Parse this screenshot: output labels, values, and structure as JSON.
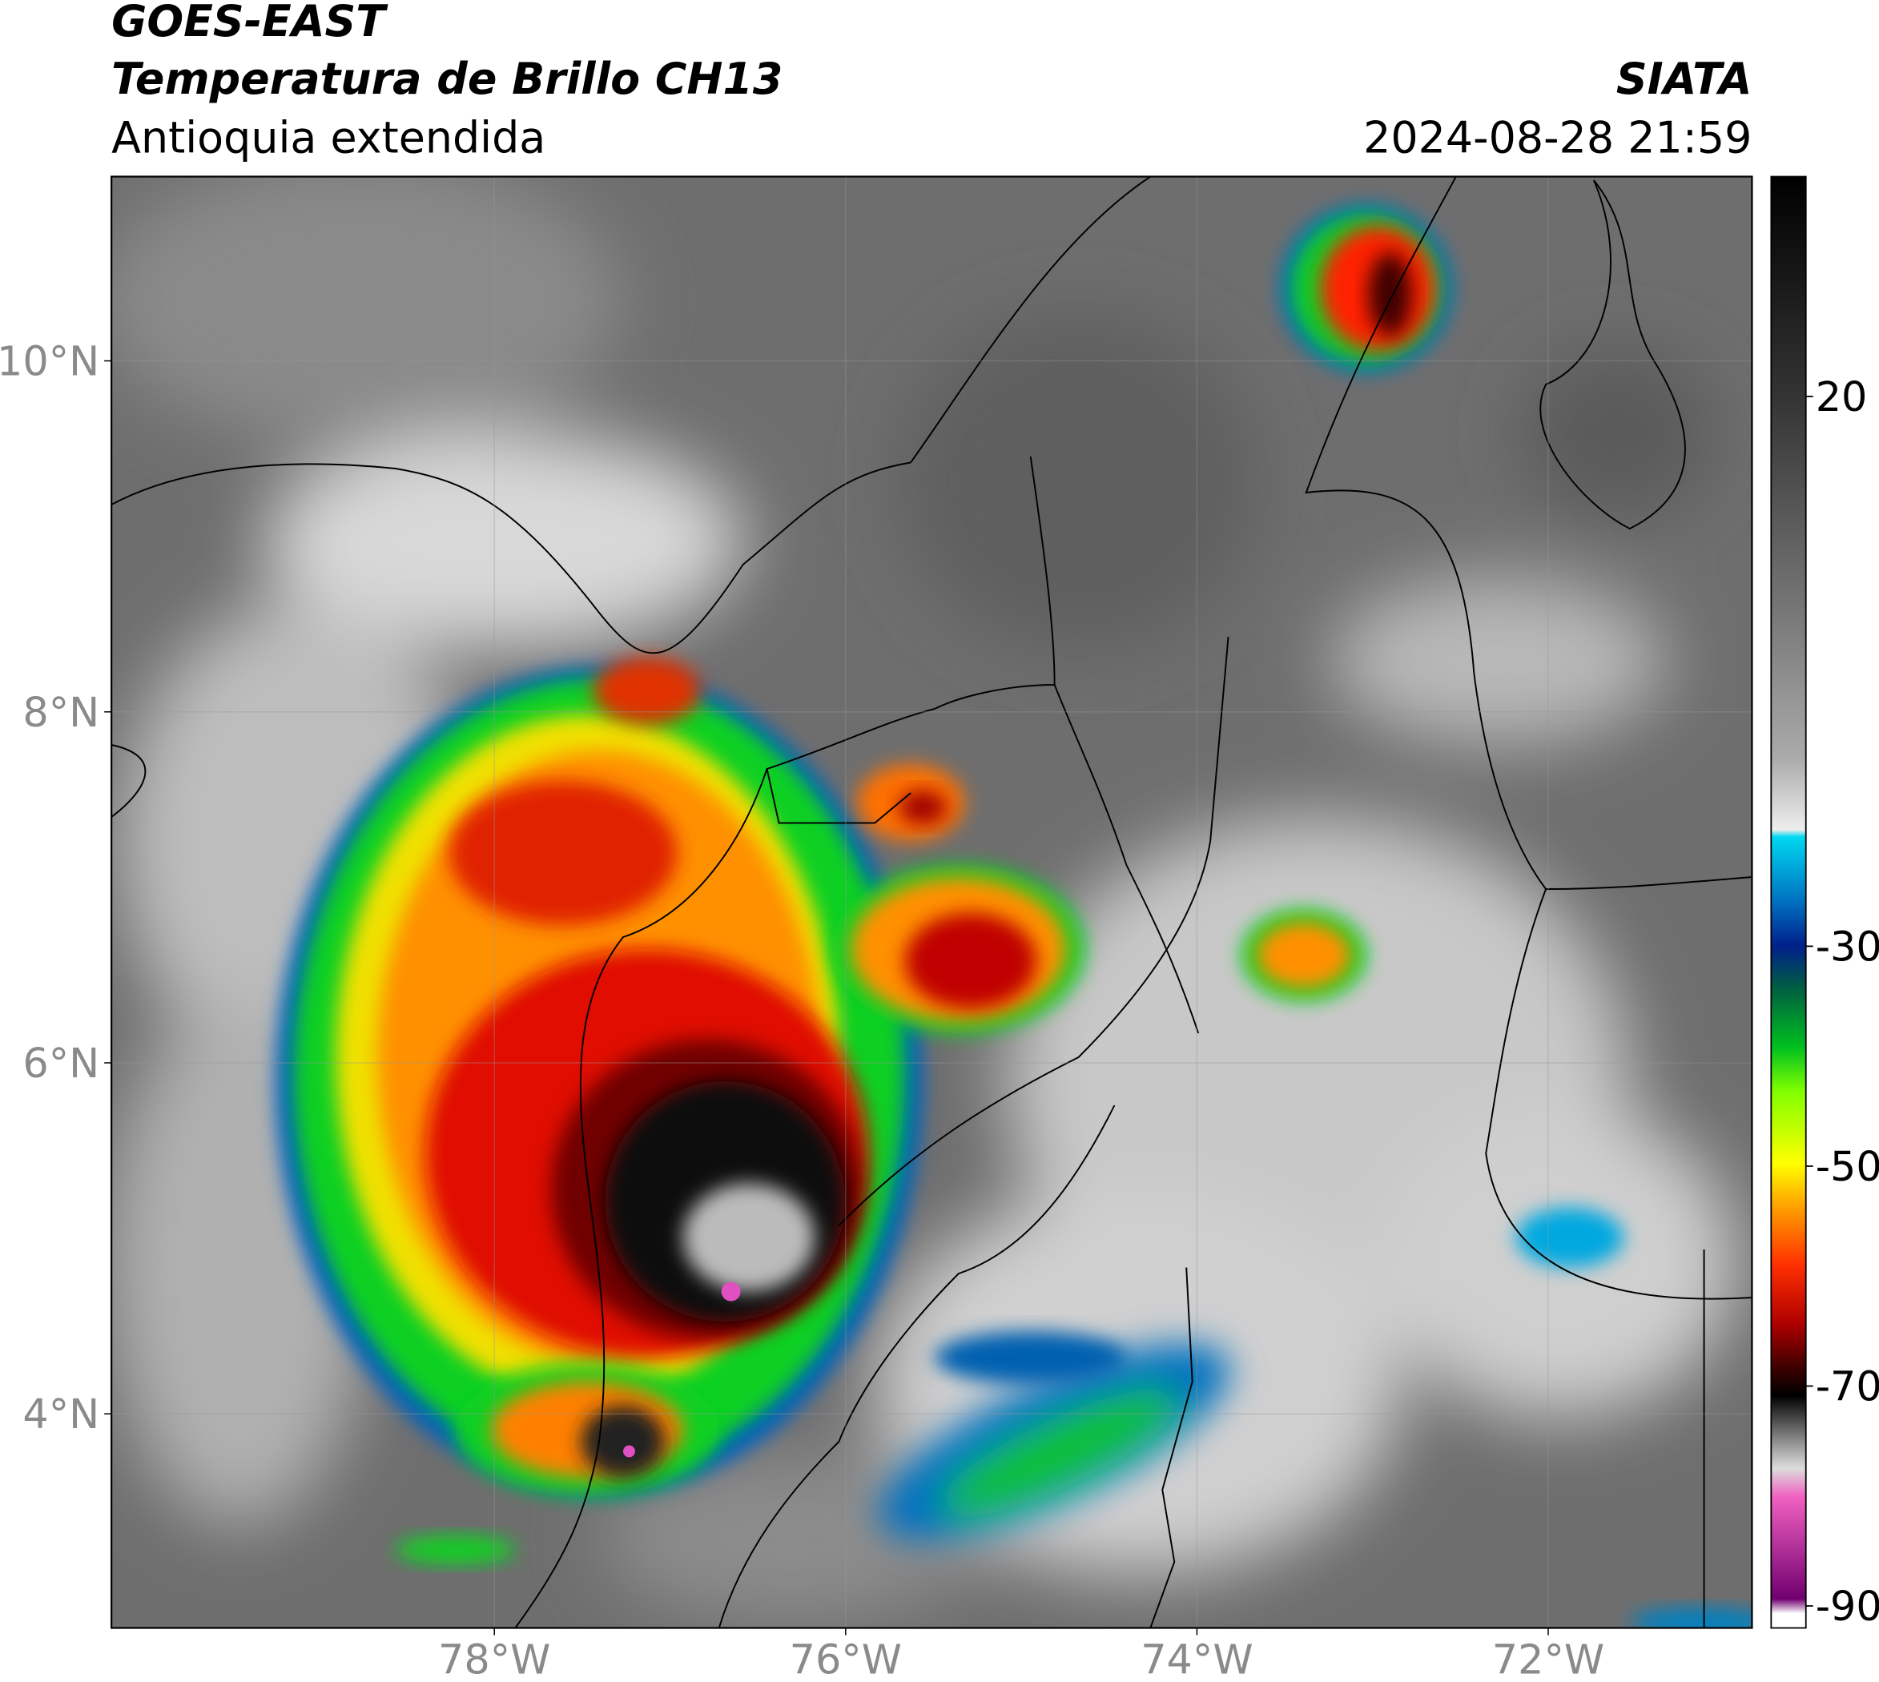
{
  "header": {
    "source": "GOES-EAST",
    "product": "Temperatura de Brillo CH13",
    "region": "Antioquia extendida",
    "agency": "SIATA",
    "datetime": "2024-08-28 21:59"
  },
  "map": {
    "latlim": [
      2.78,
      11.05
    ],
    "lonlim": [
      -80.18,
      -70.84
    ],
    "lat_ticks": [
      {
        "value": 10,
        "label": "10°N"
      },
      {
        "value": 8,
        "label": "8°N"
      },
      {
        "value": 6,
        "label": "6°N"
      },
      {
        "value": 4,
        "label": "4°N"
      }
    ],
    "lon_ticks": [
      {
        "value": -78,
        "label": "78°W"
      },
      {
        "value": -76,
        "label": "76°W"
      },
      {
        "value": -74,
        "label": "74°W"
      },
      {
        "value": -72,
        "label": "72°W"
      }
    ]
  },
  "colorbar": {
    "lim": [
      -92,
      40
    ],
    "ticks": [
      20,
      -30,
      -50,
      -70,
      -90
    ]
  }
}
